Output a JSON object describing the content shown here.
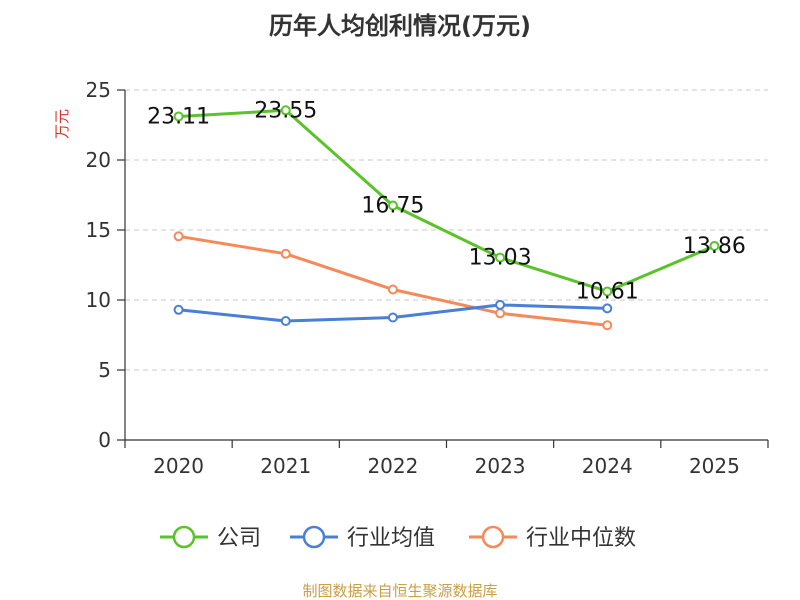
{
  "colors": {
    "company": "#5ac32a",
    "industry_avg": "#4a7fd6",
    "industry_median": "#f48a5a",
    "grid": "#c8c8c8",
    "axis": "#333333",
    "unit": "#d9342b",
    "source": "#c8a046"
  },
  "source_text": "制图数据来自恒生聚源数据库",
  "chart_data": {
    "type": "line",
    "title": "历年人均创利情况(万元)",
    "ylabel": "万元",
    "xlabel": "",
    "ylim": [
      0,
      25
    ],
    "yticks": [
      0,
      5,
      10,
      15,
      20,
      25
    ],
    "grid": true,
    "legend_position": "bottom",
    "categories": [
      "2020",
      "2021",
      "2022",
      "2023",
      "2024",
      "2025"
    ],
    "series": [
      {
        "name": "公司",
        "color_key": "company",
        "values": [
          23.11,
          23.55,
          16.75,
          13.03,
          10.61,
          13.86
        ],
        "labels": [
          "23.11",
          "23.55",
          "16.75",
          "13.03",
          "10.61",
          "13.86"
        ]
      },
      {
        "name": "行业均值",
        "color_key": "industry_avg",
        "values": [
          9.3,
          8.5,
          8.75,
          9.65,
          9.4,
          null
        ]
      },
      {
        "name": "行业中位数",
        "color_key": "industry_median",
        "values": [
          14.55,
          13.3,
          10.75,
          9.05,
          8.2,
          null
        ]
      }
    ]
  }
}
